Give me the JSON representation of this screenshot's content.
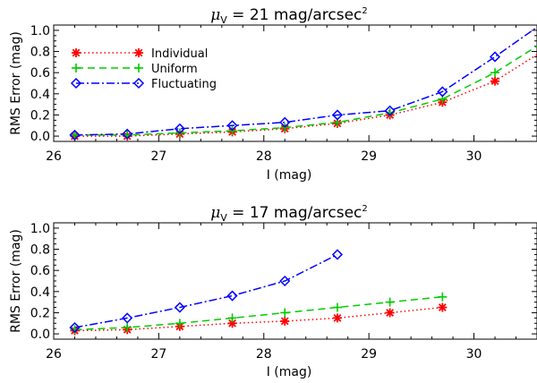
{
  "chart_data": [
    {
      "type": "line",
      "title": {
        "symbol": "μ",
        "subscript": "V",
        "text": " = 21 mag/arcsec",
        "superscript": "2"
      },
      "xlabel": "I (mag)",
      "ylabel": "RMS Error (mag)",
      "xlim": [
        26,
        30.6
      ],
      "ylim": [
        -0.05,
        1.05
      ],
      "xticks": [
        "26",
        "27",
        "28",
        "29",
        "30"
      ],
      "yticks": [
        "0.0",
        "0.2",
        "0.4",
        "0.6",
        "0.8",
        "1.0"
      ],
      "legend_position": "top-left",
      "series": [
        {
          "name": "Individual",
          "color": "#ff0000",
          "marker": "asterisk",
          "linestyle": "dotted",
          "x": [
            26.2,
            26.7,
            27.2,
            27.7,
            28.2,
            28.7,
            29.2,
            29.7,
            30.2
          ],
          "y": [
            0.0,
            0.0,
            0.02,
            0.04,
            0.07,
            0.12,
            0.2,
            0.32,
            0.52
          ],
          "x_end": 30.6,
          "y_end": 0.77
        },
        {
          "name": "Uniform",
          "color": "#00cc00",
          "marker": "plus",
          "linestyle": "dashed",
          "x": [
            26.2,
            26.7,
            27.2,
            27.7,
            28.2,
            28.7,
            29.2,
            29.7,
            30.2
          ],
          "y": [
            0.01,
            0.01,
            0.03,
            0.05,
            0.08,
            0.13,
            0.22,
            0.35,
            0.6
          ],
          "x_end": 30.6,
          "y_end": 0.85
        },
        {
          "name": "Fluctuating",
          "color": "#0000ff",
          "marker": "diamond",
          "linestyle": "dashdot",
          "x": [
            26.2,
            26.7,
            27.2,
            27.7,
            28.2,
            28.7,
            29.2,
            29.7,
            30.2
          ],
          "y": [
            0.01,
            0.02,
            0.07,
            0.1,
            0.13,
            0.2,
            0.24,
            0.42,
            0.75
          ],
          "x_end": 30.6,
          "y_end": 1.03
        }
      ]
    },
    {
      "type": "line",
      "title": {
        "symbol": "μ",
        "subscript": "V",
        "text": " = 17 mag/arcsec",
        "superscript": "2"
      },
      "xlabel": "I (mag)",
      "ylabel": "RMS Error (mag)",
      "xlim": [
        26,
        30.6
      ],
      "ylim": [
        -0.05,
        1.05
      ],
      "xticks": [
        "26",
        "27",
        "28",
        "29",
        "30"
      ],
      "yticks": [
        "0.0",
        "0.2",
        "0.4",
        "0.6",
        "0.8",
        "1.0"
      ],
      "series": [
        {
          "name": "Individual",
          "color": "#ff0000",
          "marker": "asterisk",
          "linestyle": "dotted",
          "x": [
            26.2,
            26.7,
            27.2,
            27.7,
            28.2,
            28.7,
            29.2,
            29.7
          ],
          "y": [
            0.03,
            0.04,
            0.07,
            0.1,
            0.12,
            0.15,
            0.2,
            0.25
          ]
        },
        {
          "name": "Uniform",
          "color": "#00cc00",
          "marker": "plus",
          "linestyle": "dashed",
          "x": [
            26.2,
            26.7,
            27.2,
            27.7,
            28.2,
            28.7,
            29.2,
            29.7
          ],
          "y": [
            0.04,
            0.06,
            0.1,
            0.15,
            0.2,
            0.25,
            0.3,
            0.35
          ]
        },
        {
          "name": "Fluctuating",
          "color": "#0000ff",
          "marker": "diamond",
          "linestyle": "dashdot",
          "x": [
            26.2,
            26.7,
            27.2,
            27.7,
            28.2,
            28.7
          ],
          "y": [
            0.06,
            0.15,
            0.25,
            0.36,
            0.5,
            0.75
          ]
        }
      ]
    }
  ]
}
